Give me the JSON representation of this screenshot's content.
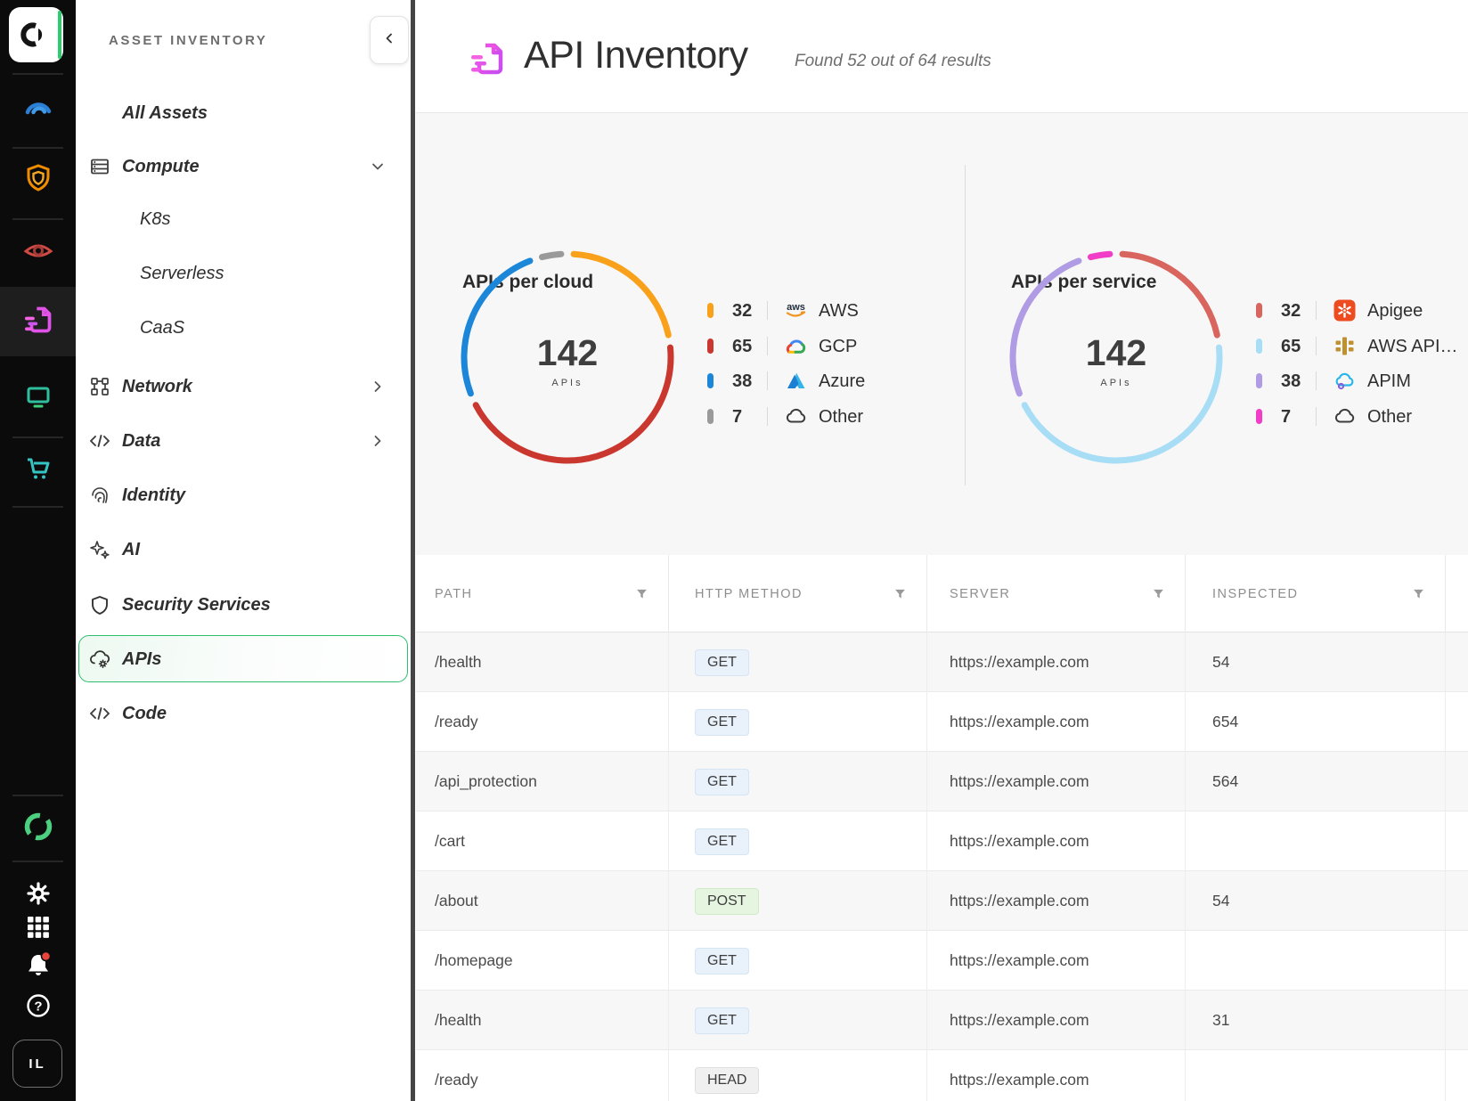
{
  "rail": {
    "items": [
      {
        "name": "orca-logo",
        "icon": "logo"
      },
      {
        "name": "risk-dashboard",
        "icon": "gauge"
      },
      {
        "name": "security-shield",
        "icon": "shield"
      },
      {
        "name": "discovery-eye",
        "icon": "eye"
      },
      {
        "name": "api-inventory",
        "icon": "apiDoc",
        "selected": true
      },
      {
        "name": "workloads-monitor",
        "icon": "monitor"
      },
      {
        "name": "marketplace-cart",
        "icon": "cart"
      },
      {
        "name": "orca-ring",
        "icon": "ring"
      },
      {
        "name": "settings",
        "icon": "gear"
      },
      {
        "name": "apps-grid",
        "icon": "grid"
      },
      {
        "name": "notifications",
        "icon": "bell",
        "badge": true
      },
      {
        "name": "help",
        "icon": "help"
      },
      {
        "name": "account",
        "icon": "badge",
        "label": "IL"
      }
    ]
  },
  "sidebar": {
    "title": "ASSET INVENTORY",
    "items": [
      {
        "label": "All Assets",
        "level": 0
      },
      {
        "label": "Compute",
        "level": 0,
        "icon": "server",
        "chevron": "down"
      },
      {
        "label": "K8s",
        "level": 1
      },
      {
        "label": "Serverless",
        "level": 1
      },
      {
        "label": "CaaS",
        "level": 1
      },
      {
        "label": "Network",
        "level": 0,
        "icon": "network",
        "chevron": "right"
      },
      {
        "label": "Data",
        "level": 0,
        "icon": "codeTag",
        "chevron": "right"
      },
      {
        "label": "Identity",
        "level": 0,
        "icon": "fingerprint"
      },
      {
        "label": "AI",
        "level": 0,
        "icon": "sparkles"
      },
      {
        "label": "Security Services",
        "level": 0,
        "icon": "shieldOutline"
      },
      {
        "label": "APIs",
        "level": 0,
        "icon": "cloudGear",
        "selected": true
      },
      {
        "label": "Code",
        "level": 0,
        "icon": "codeTag"
      }
    ]
  },
  "header": {
    "title": "API Inventory",
    "subtitle": "Found 52 out of 64 results"
  },
  "chart_data": [
    {
      "type": "pie",
      "title": "APIs per cloud",
      "center_value": "142",
      "center_label": "APIs",
      "legend_position": "right",
      "series": [
        {
          "name": "AWS",
          "value": 32,
          "color": "#f9a11b",
          "icon": "aws"
        },
        {
          "name": "GCP",
          "value": 65,
          "color": "#c9372e",
          "icon": "gcp"
        },
        {
          "name": "Azure",
          "value": 38,
          "color": "#1c86d8",
          "icon": "azure"
        },
        {
          "name": "Other",
          "value": 7,
          "color": "#9a9a9a",
          "icon": "cloud"
        }
      ]
    },
    {
      "type": "pie",
      "title": "APIs per service",
      "center_value": "142",
      "center_label": "APIs",
      "legend_position": "right",
      "series": [
        {
          "name": "Apigee",
          "value": 32,
          "color": "#d9655f",
          "icon": "apigee"
        },
        {
          "name": "AWS API…",
          "value": 65,
          "color": "#a8ddf6",
          "icon": "awsGateway"
        },
        {
          "name": "APIM",
          "value": 38,
          "color": "#b09ce4",
          "icon": "apim"
        },
        {
          "name": "Other",
          "value": 7,
          "color": "#f23ec6",
          "icon": "cloud"
        }
      ]
    }
  ],
  "table": {
    "columns": [
      "PATH",
      "HTTP METHOD",
      "SERVER",
      "INSPECTED"
    ],
    "method_styles": {
      "GET": {
        "bg": "#e9f1fb",
        "border": "#d6e4f3"
      },
      "POST": {
        "bg": "#e6f5df",
        "border": "#d2e9c9"
      },
      "HEAD": {
        "bg": "#f0f0f0",
        "border": "#dedede"
      }
    },
    "rows": [
      {
        "path": "/health",
        "method": "GET",
        "server": "https://example.com",
        "inspected": "54"
      },
      {
        "path": "/ready",
        "method": "GET",
        "server": "https://example.com",
        "inspected": "654"
      },
      {
        "path": "/api_protection",
        "method": "GET",
        "server": "https://example.com",
        "inspected": "564"
      },
      {
        "path": "/cart",
        "method": "GET",
        "server": "https://example.com",
        "inspected": ""
      },
      {
        "path": "/about",
        "method": "POST",
        "server": "https://example.com",
        "inspected": "54"
      },
      {
        "path": "/homepage",
        "method": "GET",
        "server": "https://example.com",
        "inspected": ""
      },
      {
        "path": "/health",
        "method": "GET",
        "server": "https://example.com",
        "inspected": "31"
      },
      {
        "path": "/ready",
        "method": "HEAD",
        "server": "https://example.com",
        "inspected": ""
      }
    ]
  }
}
